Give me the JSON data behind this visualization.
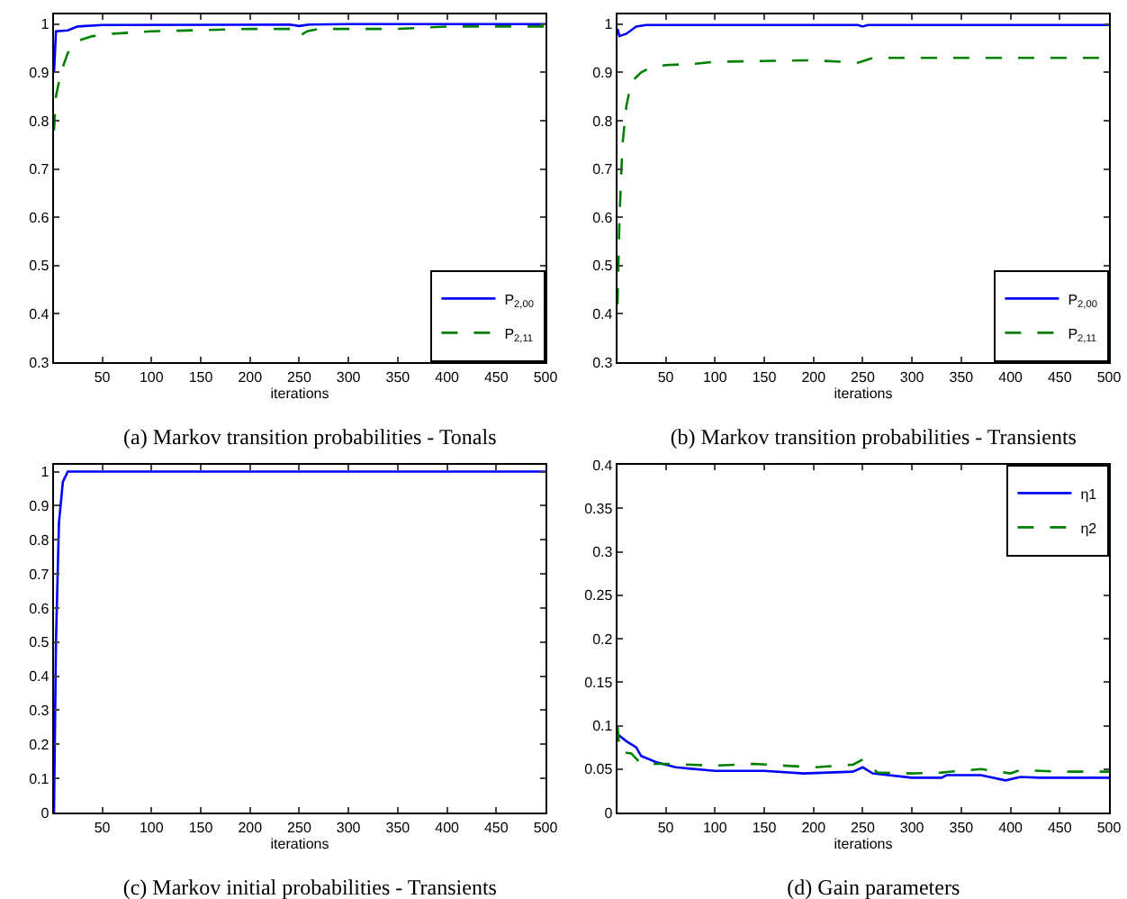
{
  "chart_data": [
    {
      "type": "line",
      "title": "(a) Markov transition probabilities - Tonals",
      "xlabel": "iterations",
      "xlim": [
        1,
        500
      ],
      "xticks": [
        50,
        100,
        150,
        200,
        250,
        300,
        350,
        400,
        450,
        500
      ],
      "ylim": [
        0.3,
        1.02
      ],
      "yticks": [
        0.3,
        0.4,
        0.5,
        0.6,
        0.7,
        0.8,
        0.9,
        1
      ],
      "grid": false,
      "legend": "bottom right",
      "series": [
        {
          "name": "P$_{2,00}$",
          "color": "#0000ff",
          "line_style": "solid",
          "x": [
            1,
            3,
            15,
            25,
            50,
            240,
            250,
            260,
            300,
            500
          ],
          "values": [
            0.9,
            0.985,
            0.987,
            0.995,
            0.998,
            0.999,
            0.996,
            0.999,
            1,
            1
          ]
        },
        {
          "name": "P$_{2,11}$",
          "color": "#008000",
          "line_style": "dashed",
          "x": [
            1,
            3,
            8,
            15,
            25,
            40,
            60,
            100,
            200,
            245,
            250,
            258,
            270,
            350,
            400,
            500
          ],
          "values": [
            0.78,
            0.85,
            0.9,
            0.94,
            0.965,
            0.975,
            0.98,
            0.985,
            0.99,
            0.99,
            0.975,
            0.985,
            0.99,
            0.99,
            0.995,
            0.995
          ]
        }
      ]
    },
    {
      "type": "line",
      "title": "(b) Markov transition probabilities - Transients",
      "xlabel": "iterations",
      "xlim": [
        1,
        500
      ],
      "xticks": [
        50,
        100,
        150,
        200,
        250,
        300,
        350,
        400,
        450,
        500
      ],
      "ylim": [
        0.3,
        1.02
      ],
      "yticks": [
        0.3,
        0.4,
        0.5,
        0.6,
        0.7,
        0.8,
        0.9,
        1
      ],
      "grid": false,
      "legend": "bottom right",
      "series": [
        {
          "name": "P$_{2,00}$",
          "color": "#0000ff",
          "line_style": "solid",
          "x": [
            1,
            3,
            10,
            20,
            30,
            245,
            250,
            255,
            500
          ],
          "values": [
            0.99,
            0.975,
            0.98,
            0.995,
            0.998,
            0.998,
            0.995,
            0.998,
            0.998
          ]
        },
        {
          "name": "P$_{2,11}$",
          "color": "#008000",
          "line_style": "dashed",
          "x": [
            1,
            3,
            6,
            10,
            15,
            25,
            35,
            50,
            80,
            100,
            200,
            245,
            260,
            500
          ],
          "values": [
            0.42,
            0.6,
            0.75,
            0.83,
            0.88,
            0.9,
            0.91,
            0.915,
            0.918,
            0.922,
            0.925,
            0.92,
            0.93,
            0.93
          ]
        }
      ]
    },
    {
      "type": "line",
      "title": "(c) Markov initial probabilities - Transients",
      "xlabel": "iterations",
      "xlim": [
        1,
        500
      ],
      "xticks": [
        50,
        100,
        150,
        200,
        250,
        300,
        350,
        400,
        450,
        500
      ],
      "ylim": [
        0,
        1.02
      ],
      "yticks": [
        0,
        0.1,
        0.2,
        0.3,
        0.4,
        0.5,
        0.6,
        0.7,
        0.8,
        0.9,
        1
      ],
      "grid": false,
      "series": [
        {
          "color": "#0000ff",
          "line_style": "solid",
          "x": [
            1,
            3,
            6,
            10,
            15,
            500
          ],
          "values": [
            0,
            0.5,
            0.85,
            0.97,
            1,
            1
          ]
        }
      ]
    },
    {
      "type": "line",
      "title": "(d) Gain parameters",
      "xlabel": "iterations",
      "xlim": [
        1,
        500
      ],
      "xticks": [
        50,
        100,
        150,
        200,
        250,
        300,
        350,
        400,
        450,
        500
      ],
      "ylim": [
        0,
        0.4
      ],
      "yticks": [
        0,
        0.05,
        0.1,
        0.15,
        0.2,
        0.25,
        0.3,
        0.35,
        0.4
      ],
      "grid": false,
      "legend": "top right",
      "series": [
        {
          "name": "η1",
          "color": "#0000ff",
          "line_style": "solid",
          "x": [
            1,
            10,
            20,
            25,
            40,
            60,
            100,
            150,
            190,
            240,
            250,
            260,
            300,
            330,
            335,
            370,
            395,
            410,
            430,
            500
          ],
          "values": [
            0.09,
            0.082,
            0.075,
            0.065,
            0.058,
            0.052,
            0.048,
            0.048,
            0.045,
            0.047,
            0.052,
            0.045,
            0.04,
            0.04,
            0.043,
            0.043,
            0.037,
            0.041,
            0.04,
            0.04
          ]
        },
        {
          "name": "η2",
          "color": "#008000",
          "line_style": "dashed",
          "x": [
            1,
            3,
            15,
            25,
            50,
            100,
            140,
            200,
            240,
            250,
            265,
            300,
            330,
            370,
            400,
            410,
            450,
            500
          ],
          "values": [
            0.1,
            0.07,
            0.068,
            0.056,
            0.056,
            0.054,
            0.056,
            0.052,
            0.055,
            0.061,
            0.046,
            0.045,
            0.046,
            0.05,
            0.045,
            0.049,
            0.047,
            0.047
          ]
        }
      ]
    }
  ]
}
